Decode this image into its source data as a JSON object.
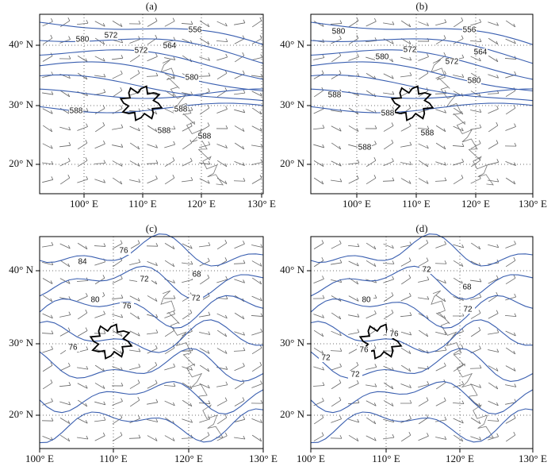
{
  "panels": [
    {
      "label": "(a)",
      "x_ticks": [
        "100° E",
        "110° E",
        "120° E",
        "130° E"
      ],
      "y_ticks": [
        "40° N",
        "30° N",
        "20° N"
      ],
      "contour_labels": [
        "556",
        "564",
        "572",
        "572",
        "580",
        "580",
        "588",
        "588",
        "588",
        "588"
      ]
    },
    {
      "label": "(b)",
      "x_ticks": [
        "100° E",
        "110° E",
        "120° E",
        "130° E"
      ],
      "y_ticks": [
        "40° N",
        "30° N",
        "20° N"
      ],
      "contour_labels": [
        "556",
        "564",
        "572",
        "572",
        "580",
        "580",
        "580",
        "588",
        "588",
        "588",
        "588"
      ]
    },
    {
      "label": "(c)",
      "x_ticks": [
        "100° E",
        "110° E",
        "120° E",
        "130° E"
      ],
      "y_ticks": [
        "40° N",
        "30° N",
        "20° N"
      ],
      "contour_labels": [
        "84",
        "76",
        "72",
        "68",
        "80",
        "76",
        "72",
        "76"
      ]
    },
    {
      "label": "(d)",
      "x_ticks": [
        "100° E",
        "110° E",
        "120° E",
        "130° E"
      ],
      "y_ticks": [
        "40° N",
        "30° N",
        "20° N"
      ],
      "contour_labels": [
        "72",
        "68",
        "80",
        "72",
        "76",
        "76",
        "72",
        "72"
      ]
    }
  ]
}
